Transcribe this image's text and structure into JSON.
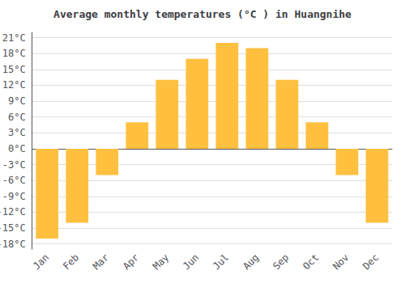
{
  "chart_data": {
    "type": "bar",
    "title": "Average monthly temperatures (°C ) in Huangnihe",
    "categories": [
      "Jan",
      "Feb",
      "Mar",
      "Apr",
      "May",
      "Jun",
      "Jul",
      "Aug",
      "Sep",
      "Oct",
      "Nov",
      "Dec"
    ],
    "values": [
      -17,
      -14,
      -5,
      5,
      13,
      17,
      20,
      19,
      13,
      5,
      -5,
      -14
    ],
    "color": "#FFC040",
    "ylim": [
      -19,
      22
    ],
    "yticks": [
      {
        "value": -18,
        "label": "-18°C"
      },
      {
        "value": -15,
        "label": "-15°C"
      },
      {
        "value": -12,
        "label": "-12°C"
      },
      {
        "value": -9,
        "label": "-9°C"
      },
      {
        "value": -6,
        "label": "-6°C"
      },
      {
        "value": -3,
        "label": "-3°C"
      },
      {
        "value": 0,
        "label": "0°C"
      },
      {
        "value": 3,
        "label": "3°C"
      },
      {
        "value": 6,
        "label": "6°C"
      },
      {
        "value": 9,
        "label": "9°C"
      },
      {
        "value": 12,
        "label": "12°C"
      },
      {
        "value": 15,
        "label": "15°C"
      },
      {
        "value": 18,
        "label": "18°C"
      },
      {
        "value": 21,
        "label": "21°C"
      }
    ],
    "grid": true
  }
}
